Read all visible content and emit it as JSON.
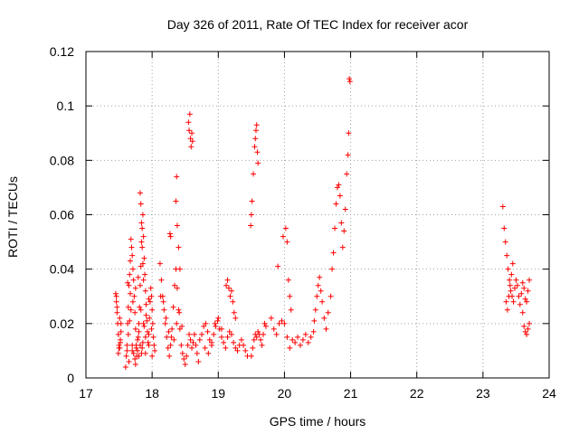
{
  "chart_data": {
    "type": "scatter",
    "title": "Day 326 of 2011, Rate Of TEC Index for receiver acor",
    "xlabel": "GPS time / hours",
    "ylabel": "ROTI / TECUs",
    "xlim": [
      17,
      24
    ],
    "ylim": [
      0,
      0.12
    ],
    "x_ticks": [
      "17",
      "18",
      "19",
      "20",
      "21",
      "22",
      "23",
      "24"
    ],
    "y_ticks": [
      "0",
      "0.02",
      "0.04",
      "0.06",
      "0.08",
      "0.1",
      "0.12"
    ],
    "grid": true,
    "legend": "none",
    "marker": "plus",
    "color": "#ff0000",
    "series": [
      {
        "x": [
          17.45,
          17.46,
          17.47,
          17.48,
          17.49,
          17.5,
          17.51,
          17.52,
          17.53,
          17.47,
          17.49,
          17.51,
          17.53,
          17.46,
          17.5,
          17.52,
          17.6,
          17.61,
          17.62,
          17.63,
          17.64,
          17.65,
          17.66,
          17.67,
          17.68,
          17.69,
          17.7,
          17.71,
          17.72,
          17.73,
          17.74,
          17.75,
          17.76,
          17.77,
          17.78,
          17.79,
          17.8,
          17.81,
          17.82,
          17.83,
          17.84,
          17.85,
          17.86,
          17.87,
          17.88,
          17.89,
          17.9,
          17.91,
          17.92,
          17.93,
          17.94,
          17.95,
          17.96,
          17.97,
          17.98,
          17.99,
          18.0,
          18.01,
          18.02,
          18.03,
          18.04,
          17.62,
          17.64,
          17.66,
          17.68,
          17.7,
          17.72,
          17.74,
          17.76,
          17.78,
          17.8,
          17.82,
          17.84,
          17.86,
          17.88,
          17.9,
          17.63,
          17.67,
          17.71,
          17.75,
          17.79,
          17.83,
          17.87,
          17.91,
          17.95,
          17.99,
          17.65,
          17.7,
          17.75,
          17.8,
          17.85,
          17.9,
          17.95,
          18.0,
          17.82,
          17.83,
          17.84,
          17.85,
          17.86,
          17.87,
          18.12,
          18.14,
          18.16,
          18.18,
          18.2,
          18.22,
          18.24,
          18.26,
          18.28,
          18.3,
          18.32,
          18.34,
          18.36,
          18.38,
          18.4,
          18.42,
          18.44,
          18.46,
          18.48,
          18.5,
          18.52,
          18.54,
          18.56,
          18.58,
          18.6,
          18.62,
          18.64,
          18.66,
          18.68,
          18.7,
          18.13,
          18.17,
          18.21,
          18.25,
          18.29,
          18.33,
          18.37,
          18.41,
          18.45,
          18.27,
          18.28,
          18.36,
          18.37,
          18.38,
          18.4,
          18.42,
          18.55,
          18.56,
          18.57,
          18.58,
          18.59,
          18.6,
          18.61,
          18.72,
          18.75,
          18.78,
          18.81,
          18.84,
          18.87,
          18.9,
          18.93,
          18.96,
          18.99,
          19.02,
          19.05,
          19.08,
          19.11,
          19.14,
          19.17,
          19.2,
          19.23,
          19.26,
          19.29,
          19.32,
          19.35,
          19.38,
          19.41,
          19.44,
          18.8,
          18.85,
          18.9,
          18.95,
          19.0,
          19.05,
          19.12,
          19.14,
          19.16,
          19.18,
          19.2,
          19.22,
          19.24,
          19.26,
          19.5,
          19.52,
          19.54,
          19.56,
          19.58,
          19.6,
          19.62,
          19.64,
          19.66,
          19.68,
          19.7,
          19.72,
          19.49,
          19.5,
          19.51,
          19.53,
          19.55,
          19.56,
          19.57,
          19.58,
          19.59,
          19.6,
          19.8,
          19.84,
          19.88,
          19.92,
          19.96,
          20.0,
          20.04,
          20.08,
          20.12,
          20.16,
          20.2,
          20.24,
          20.28,
          20.32,
          20.36,
          20.4,
          20.44,
          19.9,
          19.98,
          20.02,
          20.04,
          20.06,
          20.08,
          20.1,
          20.45,
          20.47,
          20.49,
          20.51,
          20.53,
          20.55,
          20.57,
          20.6,
          20.63,
          20.66,
          20.7,
          20.72,
          20.74,
          20.76,
          20.78,
          20.8,
          20.82,
          20.84,
          20.86,
          20.88,
          20.9,
          20.92,
          20.94,
          20.96,
          20.97,
          20.98,
          20.99,
          23.3,
          23.32,
          23.34,
          23.36,
          23.38,
          23.4,
          23.42,
          23.44,
          23.46,
          23.48,
          23.5,
          23.52,
          23.54,
          23.56,
          23.58,
          23.6,
          23.62,
          23.64,
          23.66,
          23.68,
          23.7,
          23.35,
          23.37,
          23.39,
          23.41,
          23.43,
          23.45,
          23.6,
          23.62,
          23.64,
          23.66,
          23.68,
          23.7
        ],
        "y": [
          0.031,
          0.028,
          0.024,
          0.02,
          0.016,
          0.012,
          0.011,
          0.013,
          0.02,
          0.026,
          0.009,
          0.022,
          0.017,
          0.03,
          0.011,
          0.014,
          0.004,
          0.008,
          0.012,
          0.02,
          0.026,
          0.034,
          0.038,
          0.043,
          0.051,
          0.048,
          0.045,
          0.04,
          0.036,
          0.03,
          0.024,
          0.018,
          0.012,
          0.008,
          0.01,
          0.015,
          0.02,
          0.026,
          0.034,
          0.041,
          0.05,
          0.055,
          0.06,
          0.052,
          0.044,
          0.038,
          0.032,
          0.027,
          0.021,
          0.017,
          0.013,
          0.016,
          0.022,
          0.028,
          0.033,
          0.03,
          0.025,
          0.02,
          0.015,
          0.012,
          0.01,
          0.01,
          0.016,
          0.021,
          0.025,
          0.012,
          0.009,
          0.007,
          0.011,
          0.014,
          0.017,
          0.012,
          0.009,
          0.013,
          0.019,
          0.015,
          0.035,
          0.031,
          0.028,
          0.033,
          0.037,
          0.025,
          0.02,
          0.023,
          0.029,
          0.018,
          0.006,
          0.01,
          0.005,
          0.008,
          0.011,
          0.009,
          0.012,
          0.008,
          0.068,
          0.064,
          0.057,
          0.048,
          0.042,
          0.036,
          0.042,
          0.036,
          0.03,
          0.025,
          0.02,
          0.015,
          0.011,
          0.008,
          0.012,
          0.018,
          0.026,
          0.034,
          0.04,
          0.033,
          0.025,
          0.018,
          0.012,
          0.009,
          0.007,
          0.005,
          0.008,
          0.012,
          0.016,
          0.014,
          0.011,
          0.013,
          0.016,
          0.012,
          0.009,
          0.006,
          0.03,
          0.028,
          0.022,
          0.017,
          0.015,
          0.014,
          0.02,
          0.024,
          0.019,
          0.053,
          0.052,
          0.065,
          0.074,
          0.056,
          0.048,
          0.04,
          0.094,
          0.091,
          0.097,
          0.088,
          0.085,
          0.09,
          0.087,
          0.014,
          0.016,
          0.019,
          0.02,
          0.017,
          0.014,
          0.012,
          0.016,
          0.019,
          0.021,
          0.018,
          0.015,
          0.013,
          0.011,
          0.015,
          0.017,
          0.016,
          0.013,
          0.011,
          0.01,
          0.012,
          0.014,
          0.012,
          0.01,
          0.008,
          0.011,
          0.009,
          0.013,
          0.02,
          0.022,
          0.018,
          0.034,
          0.036,
          0.033,
          0.03,
          0.032,
          0.028,
          0.024,
          0.022,
          0.008,
          0.011,
          0.014,
          0.016,
          0.015,
          0.017,
          0.016,
          0.014,
          0.012,
          0.016,
          0.02,
          0.019,
          0.056,
          0.06,
          0.065,
          0.075,
          0.085,
          0.088,
          0.091,
          0.093,
          0.083,
          0.079,
          0.022,
          0.018,
          0.016,
          0.02,
          0.021,
          0.02,
          0.015,
          0.011,
          0.014,
          0.013,
          0.015,
          0.012,
          0.014,
          0.016,
          0.013,
          0.015,
          0.017,
          0.041,
          0.052,
          0.055,
          0.05,
          0.036,
          0.03,
          0.025,
          0.021,
          0.025,
          0.03,
          0.034,
          0.037,
          0.032,
          0.028,
          0.022,
          0.018,
          0.024,
          0.03,
          0.04,
          0.046,
          0.055,
          0.064,
          0.07,
          0.071,
          0.067,
          0.057,
          0.048,
          0.054,
          0.062,
          0.075,
          0.082,
          0.09,
          0.11,
          0.109,
          0.063,
          0.055,
          0.05,
          0.045,
          0.04,
          0.036,
          0.032,
          0.03,
          0.028,
          0.033,
          0.036,
          0.034,
          0.03,
          0.027,
          0.031,
          0.035,
          0.033,
          0.029,
          0.028,
          0.032,
          0.036,
          0.028,
          0.025,
          0.03,
          0.034,
          0.038,
          0.042,
          0.024,
          0.019,
          0.017,
          0.016,
          0.018,
          0.02
        ]
      }
    ]
  }
}
